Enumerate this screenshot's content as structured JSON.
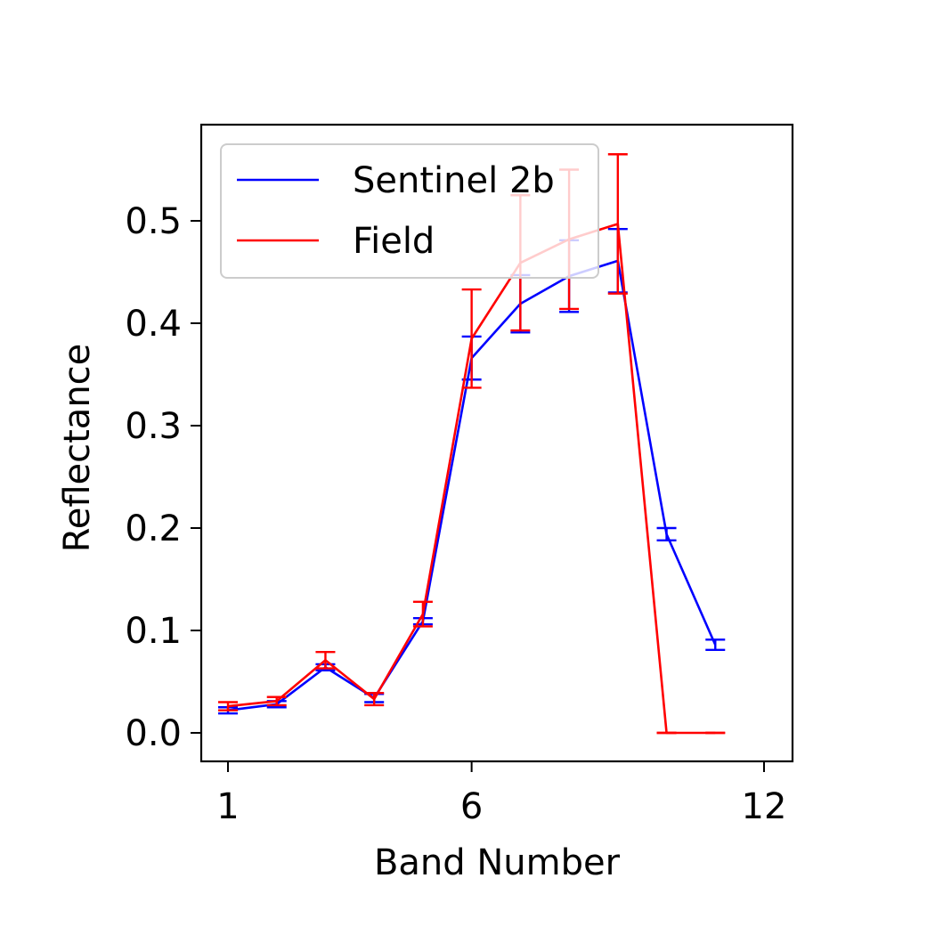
{
  "chart_data": {
    "type": "line",
    "xlabel": "Band Number",
    "ylabel": "Reflectance",
    "xlim": [
      0.5,
      12.6
    ],
    "ylim": [
      -0.028,
      0.59
    ],
    "xticks": [
      1,
      6,
      12
    ],
    "yticks": [
      0.0,
      0.1,
      0.2,
      0.3,
      0.4,
      0.5
    ],
    "ytick_labels": [
      "0.0",
      "0.1",
      "0.2",
      "0.3",
      "0.4",
      "0.5"
    ],
    "grid": false,
    "legend_position": "upper-left",
    "x": [
      1,
      2,
      3,
      4,
      5,
      6,
      7,
      8,
      9,
      10,
      11,
      12
    ],
    "series": [
      {
        "name": "Sentinel 2b",
        "color": "#0000ff",
        "values": [
          0.022,
          0.028,
          0.064,
          0.034,
          0.109,
          0.366,
          0.419,
          0.446,
          0.461,
          0.194,
          0.086
        ],
        "error": [
          0.003,
          0.003,
          0.003,
          0.004,
          0.003,
          0.021,
          0.028,
          0.035,
          0.031,
          0.006,
          0.005
        ],
        "x": [
          1,
          2,
          3,
          4,
          5,
          6,
          7,
          8,
          9,
          10,
          11
        ]
      },
      {
        "name": "Field",
        "color": "#ff0000",
        "values": [
          0.026,
          0.031,
          0.071,
          0.033,
          0.116,
          0.385,
          0.459,
          0.482,
          0.497,
          0.0,
          0.0
        ],
        "error": [
          0.004,
          0.004,
          0.008,
          0.006,
          0.012,
          0.048,
          0.066,
          0.068,
          0.068,
          0.0,
          0.0
        ],
        "x": [
          1,
          2,
          3,
          4,
          5,
          6,
          7,
          8,
          9,
          10,
          11
        ]
      }
    ]
  }
}
